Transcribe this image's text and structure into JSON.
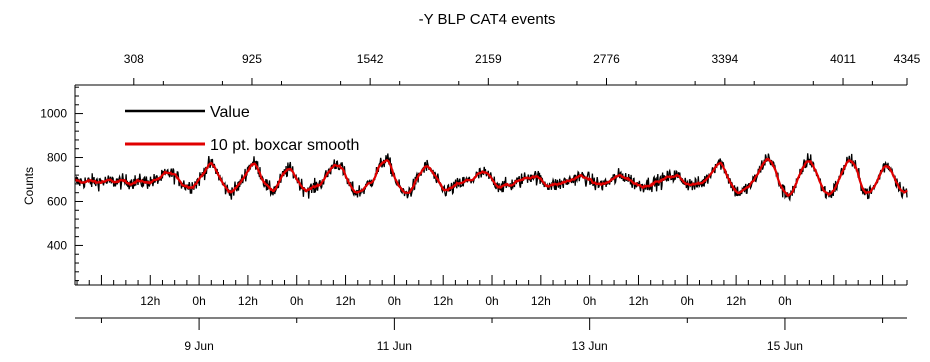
{
  "chart_data": {
    "type": "line",
    "title": "-Y BLP CAT4 events",
    "ylabel": "Counts",
    "xlabel": "",
    "ylim": [
      220,
      1130
    ],
    "yticks": [
      400,
      600,
      800,
      1000
    ],
    "top_axis": {
      "range": [
        1,
        4345
      ],
      "ticks": [
        "308",
        "925",
        "1542",
        "2159",
        "2776",
        "3394",
        "4011",
        "4345"
      ]
    },
    "time_axis": {
      "range_hours": [
        -30.5,
        174
      ],
      "hour_ticks": [
        "12h",
        "0h",
        "12h",
        "0h",
        "12h",
        "0h",
        "12h",
        "0h",
        "12h",
        "0h",
        "12h",
        "0h",
        "12h",
        "0h"
      ],
      "date_ticks": [
        "9 Jun",
        "11 Jun",
        "13 Jun",
        "15 Jun"
      ]
    },
    "legend": {
      "placement": "top-left",
      "entries": [
        "Value",
        "10 pt. boxcar smooth"
      ]
    },
    "series": [
      {
        "name": "Value",
        "color": "#000000",
        "baseline": 690,
        "noise": 32,
        "summary": "Noisy counts near 690 with diurnal peaks of about 760 to 800"
      },
      {
        "name": "10 pt. boxcar smooth",
        "color": "#e00000",
        "baseline": 690,
        "noise": 10,
        "summary": "Smoothed counts near 690 with diurnal peaks of about 730 to 760"
      }
    ],
    "peaks_hours": [
      -7,
      3,
      13.5,
      22,
      34,
      46,
      56,
      70,
      82,
      94,
      104,
      117,
      128,
      140,
      150,
      160,
      169
    ],
    "peak_heights": [
      40,
      85,
      90,
      70,
      90,
      105,
      75,
      40,
      30,
      25,
      30,
      30,
      95,
      115,
      110,
      110,
      90
    ]
  }
}
